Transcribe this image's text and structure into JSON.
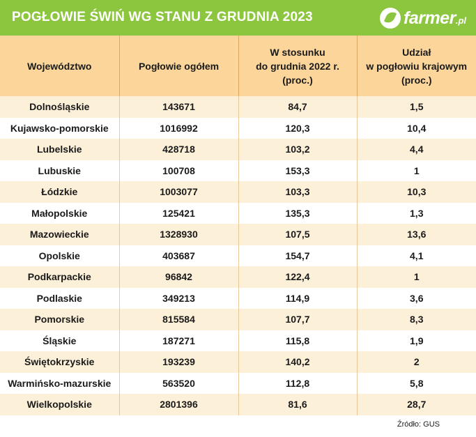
{
  "header": {
    "title": "POGŁOWIE ŚWIŃ WG STANU Z GRUDNIA 2023",
    "logo_text": "farmer",
    "logo_suffix": ".pl",
    "brand_color": "#8cc63f"
  },
  "chart_data": {
    "type": "table",
    "columns": [
      [
        "Województwo"
      ],
      [
        "Pogłowie ogółem"
      ],
      [
        "W stosunku",
        "do grudnia 2022 r.",
        "(proc.)"
      ],
      [
        "Udział",
        "w pogłowiu krajowym",
        "(proc.)"
      ]
    ],
    "rows": [
      [
        "Dolnośląskie",
        "143671",
        "84,7",
        "1,5"
      ],
      [
        "Kujawsko-pomorskie",
        "1016992",
        "120,3",
        "10,4"
      ],
      [
        "Lubelskie",
        "428718",
        "103,2",
        "4,4"
      ],
      [
        "Lubuskie",
        "100708",
        "153,3",
        "1"
      ],
      [
        "Łódzkie",
        "1003077",
        "103,3",
        "10,3"
      ],
      [
        "Małopolskie",
        "125421",
        "135,3",
        "1,3"
      ],
      [
        "Mazowieckie",
        "1328930",
        "107,5",
        "13,6"
      ],
      [
        "Opolskie",
        "403687",
        "154,7",
        "4,1"
      ],
      [
        "Podkarpackie",
        "96842",
        "122,4",
        "1"
      ],
      [
        "Podlaskie",
        "349213",
        "114,9",
        "3,6"
      ],
      [
        "Pomorskie",
        "815584",
        "107,7",
        "8,3"
      ],
      [
        "Śląskie",
        "187271",
        "115,8",
        "1,9"
      ],
      [
        "Świętokrzyskie",
        "193239",
        "140,2",
        "2"
      ],
      [
        "Warmińsko-mazurskie",
        "563520",
        "112,8",
        "5,8"
      ],
      [
        "Wielkopolskie",
        "2801396",
        "81,6",
        "28,7"
      ]
    ],
    "header_color": "#fbd59a",
    "stripe_color": "#fdf0d9"
  },
  "footer": {
    "source": "Źródło: GUS"
  }
}
